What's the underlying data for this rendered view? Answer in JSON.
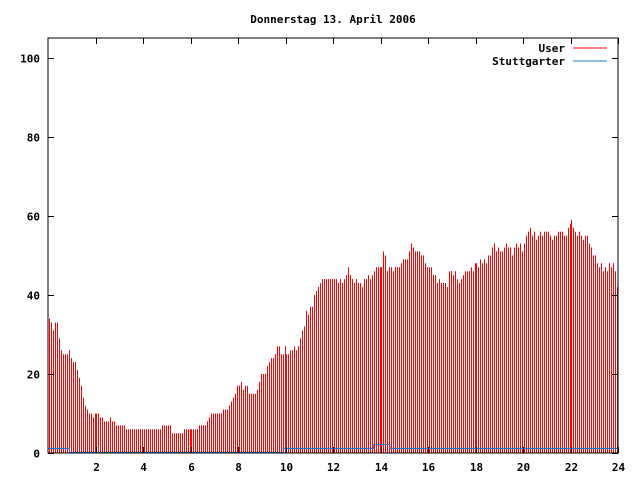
{
  "chart_data": {
    "type": "bar",
    "title": "Donnerstag 13. April 2006",
    "xlabel": "",
    "ylabel": "",
    "xlim": [
      0,
      24
    ],
    "ylim": [
      0,
      105
    ],
    "x_ticks": [
      2,
      4,
      6,
      8,
      10,
      12,
      14,
      16,
      18,
      20,
      22,
      24
    ],
    "x_tick_labels": [
      "2",
      "4",
      "6",
      "8",
      "10",
      "12",
      "14",
      "16",
      "18",
      "20",
      "22",
      "24"
    ],
    "y_ticks": [
      0,
      20,
      40,
      60,
      80,
      100
    ],
    "y_tick_labels": [
      "0",
      "20",
      "40",
      "60",
      "80",
      "100"
    ],
    "grid": false,
    "legend_position": "top-right",
    "series": [
      {
        "name": "User",
        "style": "impulses",
        "color": "#ff0000",
        "interval_hours": 0.0833333,
        "values": [
          34,
          33,
          31,
          33,
          33,
          29,
          26,
          25,
          25,
          25,
          26,
          24,
          23,
          23,
          21,
          19,
          17,
          14,
          12,
          11,
          10,
          10,
          9,
          10,
          10,
          10,
          9,
          9,
          8,
          8,
          8,
          9,
          8,
          8,
          7,
          7,
          7,
          7,
          7,
          6,
          6,
          6,
          6,
          6,
          6,
          6,
          6,
          6,
          6,
          6,
          6,
          6,
          6,
          6,
          6,
          6,
          6,
          7,
          7,
          7,
          7,
          7,
          5,
          5,
          5,
          5,
          5,
          5,
          6,
          6,
          6,
          6,
          6,
          6,
          6,
          6,
          7,
          7,
          7,
          7,
          8,
          9,
          10,
          10,
          10,
          10,
          10,
          10,
          11,
          11,
          11,
          12,
          13,
          14,
          15,
          17,
          17,
          18,
          16,
          17,
          17,
          15,
          15,
          15,
          15,
          16,
          18,
          20,
          20,
          20,
          22,
          23,
          24,
          24,
          25,
          27,
          27,
          25,
          25,
          27,
          25,
          25,
          26,
          26,
          27,
          26,
          27,
          29,
          31,
          32,
          36,
          35,
          37,
          37,
          40,
          41,
          42,
          43,
          44,
          44,
          44,
          44,
          44,
          44,
          44,
          44,
          43,
          44,
          43,
          44,
          45,
          47,
          45,
          44,
          43,
          44,
          43,
          43,
          42,
          44,
          44,
          45,
          44,
          45,
          46,
          47,
          47,
          47,
          47,
          51,
          50,
          46,
          47,
          47,
          46,
          47,
          47,
          47,
          48,
          49,
          49,
          49,
          51,
          53,
          52,
          51,
          51,
          51,
          50,
          50,
          48,
          47,
          47,
          47,
          45,
          45,
          43,
          44,
          43,
          43,
          43,
          42,
          46,
          46,
          45,
          46,
          44,
          43,
          44,
          45,
          46,
          46,
          46,
          47,
          46,
          48,
          48,
          47,
          49,
          48,
          49,
          48,
          50,
          50,
          52,
          53,
          51,
          52,
          51,
          51,
          52,
          53,
          52,
          52,
          50,
          52,
          53,
          52,
          53,
          51,
          53,
          55,
          56,
          57,
          55,
          56,
          54,
          55,
          56,
          55,
          56,
          56,
          56,
          55,
          54,
          55,
          55,
          56,
          56,
          56,
          55,
          55,
          57,
          58,
          59,
          57,
          56,
          55,
          56,
          55,
          54,
          55,
          55,
          53,
          52,
          50,
          50,
          48,
          47,
          48,
          46,
          47,
          46,
          48,
          47,
          48,
          46,
          42
        ]
      },
      {
        "name": "Stuttgarter",
        "style": "steps",
        "color": "#1f78d0",
        "x": [
          0,
          0.9,
          0.9,
          9.9,
          9.9,
          13.7,
          13.7,
          14.4,
          14.4,
          24
        ],
        "y": [
          1,
          1,
          0,
          0,
          1,
          1,
          2,
          2,
          1,
          1
        ]
      }
    ]
  }
}
